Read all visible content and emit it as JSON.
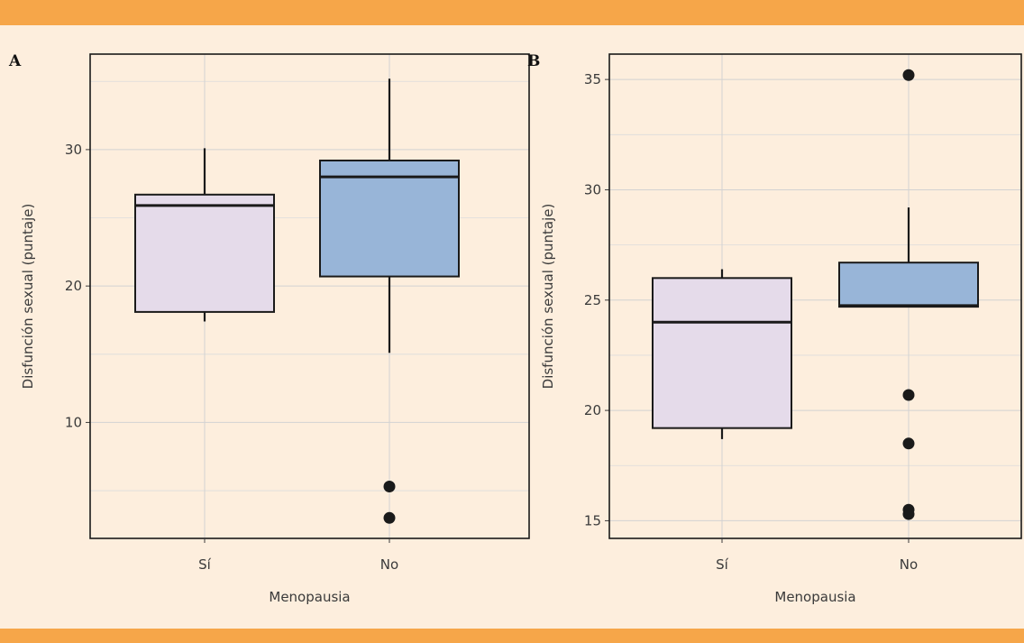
{
  "colors": {
    "background": "#fdeedd",
    "band": "#f6a649",
    "si_fill": "#e5dbea",
    "no_fill": "#98b5d8"
  },
  "chart_data": [
    {
      "panel": "A",
      "type": "boxplot",
      "xlabel": "Menopausia",
      "ylabel": "Disfunción sexual (puntaje)",
      "categories": [
        "Sí",
        "No"
      ],
      "ylim": [
        1.5,
        37
      ],
      "yticks": [
        10,
        20,
        30
      ],
      "grid": true,
      "boxes": [
        {
          "category": "Sí",
          "whisker_low": 17.4,
          "q1": 18.1,
          "median": 25.9,
          "q3": 26.7,
          "whisker_high": 30.1,
          "outliers": [],
          "color": "#e5dbea"
        },
        {
          "category": "No",
          "whisker_low": 15.1,
          "q1": 20.7,
          "median": 28.0,
          "q3": 29.2,
          "whisker_high": 35.2,
          "outliers": [
            5.3,
            3.0
          ],
          "color": "#98b5d8"
        }
      ]
    },
    {
      "panel": "B",
      "type": "boxplot",
      "xlabel": "Menopausia",
      "ylabel": "Disfunción sexual (puntaje)",
      "categories": [
        "Sí",
        "No"
      ],
      "ylim": [
        14.2,
        36.15
      ],
      "yticks": [
        15,
        20,
        25,
        30,
        35
      ],
      "grid": true,
      "boxes": [
        {
          "category": "Sí",
          "whisker_low": 18.7,
          "q1": 19.2,
          "median": 24.0,
          "q3": 26.0,
          "whisker_high": 26.4,
          "outliers": [],
          "color": "#e5dbea"
        },
        {
          "category": "No",
          "whisker_low": 24.7,
          "q1": 24.7,
          "median": 24.75,
          "q3": 26.7,
          "whisker_high": 29.2,
          "outliers": [
            35.2,
            20.7,
            18.5,
            15.5,
            15.3
          ],
          "color": "#98b5d8"
        }
      ]
    }
  ]
}
